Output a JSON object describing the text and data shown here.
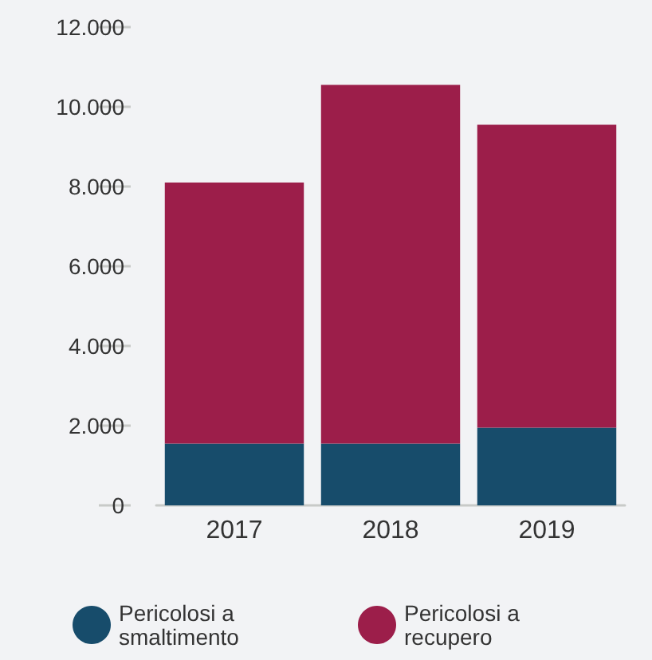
{
  "chart_data": {
    "type": "bar",
    "stacked": true,
    "categories": [
      "2017",
      "2018",
      "2019"
    ],
    "series": [
      {
        "name": "Pericolosi a smaltimento",
        "color": "#174c6b",
        "values": [
          1550,
          1550,
          1950
        ]
      },
      {
        "name": "Pericolosi a recupero",
        "color": "#9c1e4a",
        "values": [
          6550,
          9000,
          7600
        ]
      }
    ],
    "ylim": [
      0,
      12000
    ],
    "yticks": [
      {
        "value": 0,
        "label": "0"
      },
      {
        "value": 2000,
        "label": "2.000"
      },
      {
        "value": 4000,
        "label": "4.000"
      },
      {
        "value": 6000,
        "label": "6.000"
      },
      {
        "value": 8000,
        "label": "8.000"
      },
      {
        "value": 10000,
        "label": "10.000"
      },
      {
        "value": 12000,
        "label": "12.000"
      }
    ],
    "grid": false,
    "legend": "bottom"
  }
}
